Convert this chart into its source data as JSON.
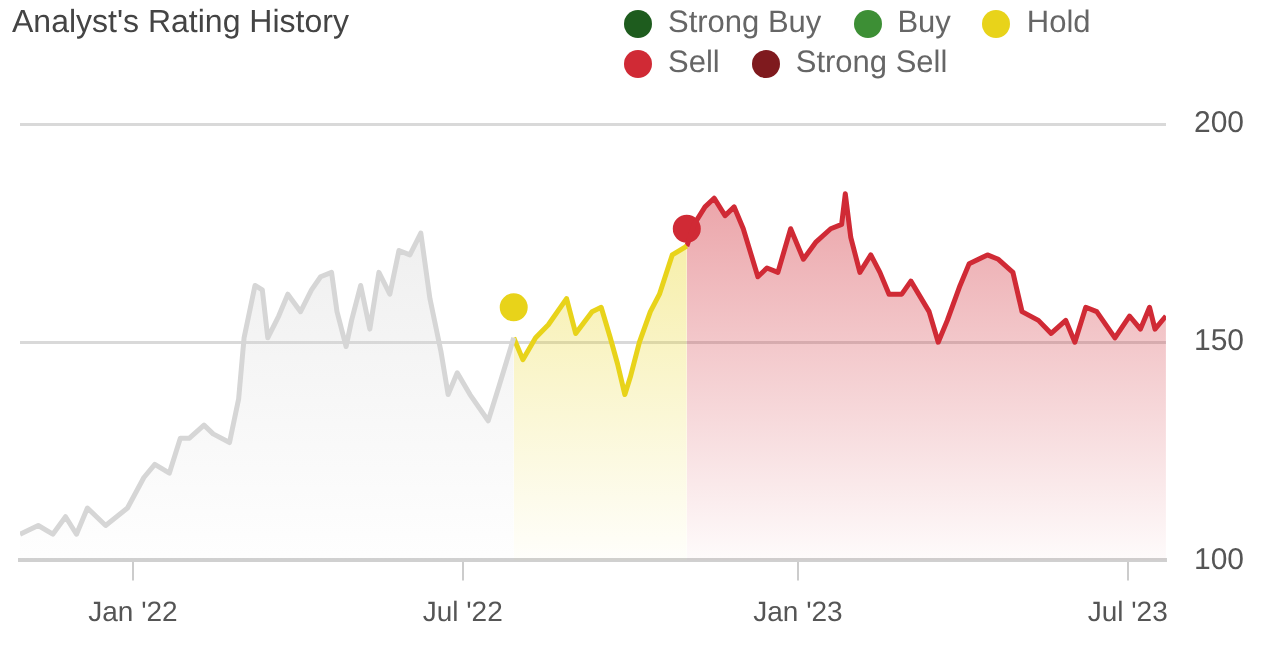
{
  "chart_data": {
    "type": "area",
    "title": "Analyst's Rating History",
    "legend": "top right",
    "grid": "y",
    "xlim": [
      "2021-10-31",
      "2023-07-22"
    ],
    "xticks": [
      {
        "value": "2022-01-01",
        "label": "Jan '22"
      },
      {
        "value": "2022-07-01",
        "label": "Jul '22"
      },
      {
        "value": "2023-01-01",
        "label": "Jan '23"
      },
      {
        "value": "2023-07-01",
        "label": "Jul '23"
      }
    ],
    "ylim": [
      100,
      200
    ],
    "yticks": [
      100,
      150,
      200
    ],
    "series": [
      {
        "name": "Strong Buy",
        "color": "#1e5c1e"
      },
      {
        "name": "Buy",
        "color": "#3d8f35"
      },
      {
        "color": "#d6d6d6",
        "x": [
          "2021-10-31",
          "2021-11-10",
          "2021-11-18",
          "2021-11-25",
          "2021-12-01",
          "2021-12-07",
          "2021-12-17",
          "2021-12-29",
          "2022-01-07",
          "2022-01-13",
          "2022-01-21",
          "2022-01-27",
          "2022-02-01",
          "2022-02-09",
          "2022-02-14",
          "2022-02-23",
          "2022-02-28",
          "2022-03-03",
          "2022-03-09",
          "2022-03-13",
          "2022-03-16",
          "2022-03-22",
          "2022-03-27",
          "2022-04-03",
          "2022-04-09",
          "2022-04-14",
          "2022-04-20",
          "2022-04-23",
          "2022-04-28",
          "2022-05-01",
          "2022-05-06",
          "2022-05-11",
          "2022-05-16",
          "2022-05-22",
          "2022-05-27",
          "2022-06-02",
          "2022-06-08",
          "2022-06-13",
          "2022-06-19",
          "2022-06-23",
          "2022-06-28",
          "2022-07-05",
          "2022-07-15",
          "2022-07-21",
          "2022-07-29"
        ],
        "values": [
          106,
          108,
          106,
          110,
          106,
          112,
          108,
          112,
          119,
          122,
          120,
          128,
          128,
          131,
          129,
          127,
          137,
          151,
          163,
          162,
          151,
          156,
          161,
          157,
          162,
          165,
          166,
          157,
          149,
          155,
          163,
          153,
          166,
          161,
          171,
          170,
          175,
          160,
          148,
          138,
          143,
          138,
          132,
          140,
          151
        ]
      },
      {
        "name": "Hold",
        "color": "#e8d31a",
        "x": [
          "2022-07-29",
          "2022-08-03",
          "2022-08-10",
          "2022-08-17",
          "2022-08-27",
          "2022-09-01",
          "2022-09-10",
          "2022-09-15",
          "2022-09-20",
          "2022-09-24",
          "2022-09-28",
          "2022-10-01",
          "2022-10-06",
          "2022-10-12",
          "2022-10-17",
          "2022-10-24",
          "2022-11-01"
        ],
        "values": [
          151,
          146,
          151,
          154,
          160,
          152,
          157,
          158,
          151,
          145,
          138,
          142,
          150,
          157,
          161,
          170,
          172
        ]
      },
      {
        "name": "Sell",
        "color": "#d02a35",
        "x": [
          "2022-11-01",
          "2022-11-05",
          "2022-11-11",
          "2022-11-16",
          "2022-11-22",
          "2022-11-27",
          "2022-12-02",
          "2022-12-10",
          "2022-12-15",
          "2022-12-21",
          "2022-12-28",
          "2023-01-04",
          "2023-01-11",
          "2023-01-19",
          "2023-01-25",
          "2023-01-27",
          "2023-01-30",
          "2023-02-04",
          "2023-02-10",
          "2023-02-15",
          "2023-02-20",
          "2023-02-27",
          "2023-03-04",
          "2023-03-14",
          "2023-03-19",
          "2023-03-24",
          "2023-03-31",
          "2023-04-05",
          "2023-04-15",
          "2023-04-21",
          "2023-04-29",
          "2023-05-04",
          "2023-05-13",
          "2023-05-20",
          "2023-05-28",
          "2023-06-02",
          "2023-06-08",
          "2023-06-14",
          "2023-06-24",
          "2023-07-02",
          "2023-07-08",
          "2023-07-13",
          "2023-07-16",
          "2023-07-22"
        ],
        "values": [
          172,
          177,
          181,
          183,
          179,
          181,
          176,
          165,
          167,
          166,
          176,
          169,
          173,
          176,
          177,
          184,
          174,
          166,
          170,
          166,
          161,
          161,
          164,
          157,
          150,
          155,
          163,
          168,
          170,
          169,
          166,
          157,
          155,
          152,
          155,
          150,
          158,
          157,
          151,
          156,
          153,
          158,
          153,
          156
        ]
      },
      {
        "name": "Strong Sell",
        "color": "#7f1a1e"
      },
      {
        "type": "scatter",
        "marker": "circle",
        "x": [
          "2022-07-29",
          "2022-11-01"
        ],
        "values": [
          158,
          176
        ],
        "colors": [
          "#e8d31a",
          "#d02a35"
        ]
      }
    ]
  }
}
